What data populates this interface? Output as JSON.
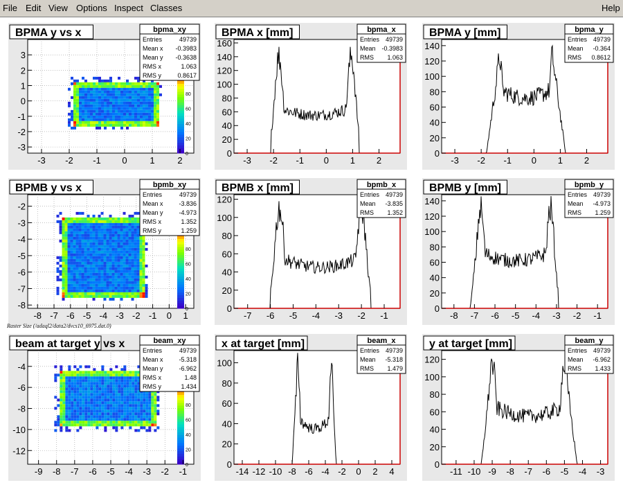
{
  "menu": {
    "file": "File",
    "edit": "Edit",
    "view": "View",
    "options": "Options",
    "inspect": "Inspect",
    "classes": "Classes",
    "help": "Help"
  },
  "raster_label": "Raster Size (/adaql2/data2/dvcs10_6975.dat.0)",
  "palette_labels": [
    "0",
    "20",
    "40",
    "60",
    "80",
    "100"
  ],
  "colors": {
    "frame_bg": "#e8e8e8",
    "axis_red": "#cc0000"
  },
  "chart_data": [
    {
      "type": "heatmap",
      "title": "BPMA y vs x",
      "xticks": [
        -3,
        -2,
        -1,
        0,
        1,
        2
      ],
      "yticks": [
        -3,
        -2,
        -1,
        0,
        1,
        2,
        3
      ],
      "xlim": [
        -3.5,
        2.5
      ],
      "ylim": [
        -3.4,
        4
      ],
      "region": {
        "x": [
          -1.9,
          1.2
        ],
        "y": [
          -1.5,
          1.3
        ]
      },
      "stats": {
        "name": "bpma_xy",
        "rows": [
          [
            "Entries",
            "49739"
          ],
          [
            "Mean x",
            "-0.3983"
          ],
          [
            "Mean y",
            "-0.3638"
          ],
          [
            "RMS x",
            "1.063"
          ],
          [
            "RMS y",
            "0.8617"
          ]
        ]
      }
    },
    {
      "type": "line",
      "title": "BPMA x [mm]",
      "xticks": [
        -3,
        -2,
        -1,
        0,
        1,
        2
      ],
      "yticks": [
        0,
        20,
        40,
        60,
        80,
        100,
        120,
        140,
        160
      ],
      "xlim": [
        -3.5,
        2.8
      ],
      "ylim": [
        0,
        165
      ],
      "profile": {
        "lo": -2.1,
        "hi": 1.25,
        "peakL": -1.8,
        "peakR": 0.95,
        "peakH": 140,
        "valley": 55
      },
      "stats": {
        "name": "bpma_x",
        "rows": [
          [
            "Entries",
            "49739"
          ],
          [
            "Mean",
            "-0.3983"
          ],
          [
            "RMS",
            "1.063"
          ]
        ]
      }
    },
    {
      "type": "line",
      "title": "BPMA y [mm]",
      "xticks": [
        -3,
        -2,
        -1,
        0,
        1,
        2
      ],
      "yticks": [
        0,
        20,
        40,
        60,
        80,
        100,
        120,
        140
      ],
      "xlim": [
        -3.5,
        2.8
      ],
      "ylim": [
        0,
        148
      ],
      "profile": {
        "lo": -1.8,
        "hi": 1.2,
        "peakL": -1.3,
        "peakR": 0.7,
        "peakH": 125,
        "valley": 72
      },
      "stats": {
        "name": "bpma_y",
        "rows": [
          [
            "Entries",
            "49739"
          ],
          [
            "Mean",
            "-0.364"
          ],
          [
            "RMS",
            "0.8612"
          ]
        ]
      }
    },
    {
      "type": "heatmap",
      "title": "BPMB y vs x",
      "xticks": [
        -8,
        -7,
        -6,
        -5,
        -4,
        -3,
        -2,
        -1,
        0,
        1
      ],
      "yticks": [
        -8,
        -7,
        -6,
        -5,
        -4,
        -3,
        -2
      ],
      "xlim": [
        -8.6,
        1.5
      ],
      "ylim": [
        -8.2,
        -1.3
      ],
      "region": {
        "x": [
          -6.6,
          -1.6
        ],
        "y": [
          -7.4,
          -2.6
        ]
      },
      "stats": {
        "name": "bpmb_xy",
        "rows": [
          [
            "Entries",
            "49739"
          ],
          [
            "Mean x",
            "-3.836"
          ],
          [
            "Mean y",
            "-4.973"
          ],
          [
            "RMS x",
            "1.352"
          ],
          [
            "RMS y",
            "1.259"
          ]
        ]
      }
    },
    {
      "type": "line",
      "title": "BPMB x [mm]",
      "xticks": [
        -7,
        -6,
        -5,
        -4,
        -3,
        -2,
        -1
      ],
      "yticks": [
        0,
        20,
        40,
        60,
        80,
        100,
        120
      ],
      "xlim": [
        -7.6,
        -0.3
      ],
      "ylim": [
        0,
        125
      ],
      "profile": {
        "lo": -6.0,
        "hi": -1.6,
        "peakL": -5.6,
        "peakR": -2.0,
        "peakH": 110,
        "valley": 45
      },
      "stats": {
        "name": "bpmb_x",
        "rows": [
          [
            "Entries",
            "49739"
          ],
          [
            "Mean",
            "-3.835"
          ],
          [
            "RMS",
            "1.352"
          ]
        ]
      }
    },
    {
      "type": "line",
      "title": "BPMB y [mm]",
      "xticks": [
        -8,
        -7,
        -6,
        -5,
        -4,
        -3,
        -2,
        -1
      ],
      "yticks": [
        0,
        20,
        40,
        60,
        80,
        100,
        120,
        140
      ],
      "xlim": [
        -8.6,
        -0.5
      ],
      "ylim": [
        0,
        148
      ],
      "profile": {
        "lo": -7.2,
        "hi": -2.9,
        "peakL": -6.7,
        "peakR": -3.3,
        "peakH": 130,
        "valley": 62
      },
      "stats": {
        "name": "bpmb_y",
        "rows": [
          [
            "Entries",
            "49739"
          ],
          [
            "Mean",
            "-4.973"
          ],
          [
            "RMS",
            "1.259"
          ]
        ]
      }
    },
    {
      "type": "heatmap",
      "title": "beam at target y vs x",
      "xticks": [
        -9,
        -8,
        -7,
        -6,
        -5,
        -4,
        -3,
        -2,
        -1
      ],
      "yticks": [
        -12,
        -10,
        -8,
        -6,
        -4
      ],
      "xlim": [
        -9.6,
        -0.4
      ],
      "ylim": [
        -13.3,
        -2.5
      ],
      "region": {
        "x": [
          -7.9,
          -2.6
        ],
        "y": [
          -9.6,
          -4.3
        ]
      },
      "stats": {
        "name": "beam_xy",
        "rows": [
          [
            "Entries",
            "49739"
          ],
          [
            "Mean x",
            "-5.318"
          ],
          [
            "Mean y",
            "-6.962"
          ],
          [
            "RMS x",
            "1.48"
          ],
          [
            "RMS y",
            "1.434"
          ]
        ]
      }
    },
    {
      "type": "line",
      "title": "x at target [mm]",
      "xticks": [
        -14,
        -12,
        -10,
        -8,
        -6,
        -4,
        -2,
        0,
        2,
        4
      ],
      "yticks": [
        0,
        20,
        40,
        60,
        80,
        100
      ],
      "xlim": [
        -15,
        5
      ],
      "ylim": [
        0,
        112
      ],
      "profile": {
        "lo": -8.0,
        "hi": -2.7,
        "peakL": -7.3,
        "peakR": -3.3,
        "peakH": 100,
        "valley": 35
      },
      "stats": {
        "name": "beam_x",
        "rows": [
          [
            "Entries",
            "49739"
          ],
          [
            "Mean",
            "-5.318"
          ],
          [
            "RMS",
            "1.479"
          ]
        ]
      }
    },
    {
      "type": "line",
      "title": "y at target [mm]",
      "xticks": [
        -11,
        -10,
        -9,
        -8,
        -7,
        -6,
        -5,
        -4,
        -3
      ],
      "yticks": [
        0,
        20,
        40,
        60,
        80,
        100,
        120
      ],
      "xlim": [
        -11.8,
        -2.6
      ],
      "ylim": [
        0,
        130
      ],
      "profile": {
        "lo": -9.6,
        "hi": -4.3,
        "peakL": -9.0,
        "peakR": -5.0,
        "peakH": 115,
        "valley": 55
      },
      "stats": {
        "name": "beam_y",
        "rows": [
          [
            "Entries",
            "49739"
          ],
          [
            "Mean",
            "-6.962"
          ],
          [
            "RMS",
            "1.433"
          ]
        ]
      }
    }
  ]
}
